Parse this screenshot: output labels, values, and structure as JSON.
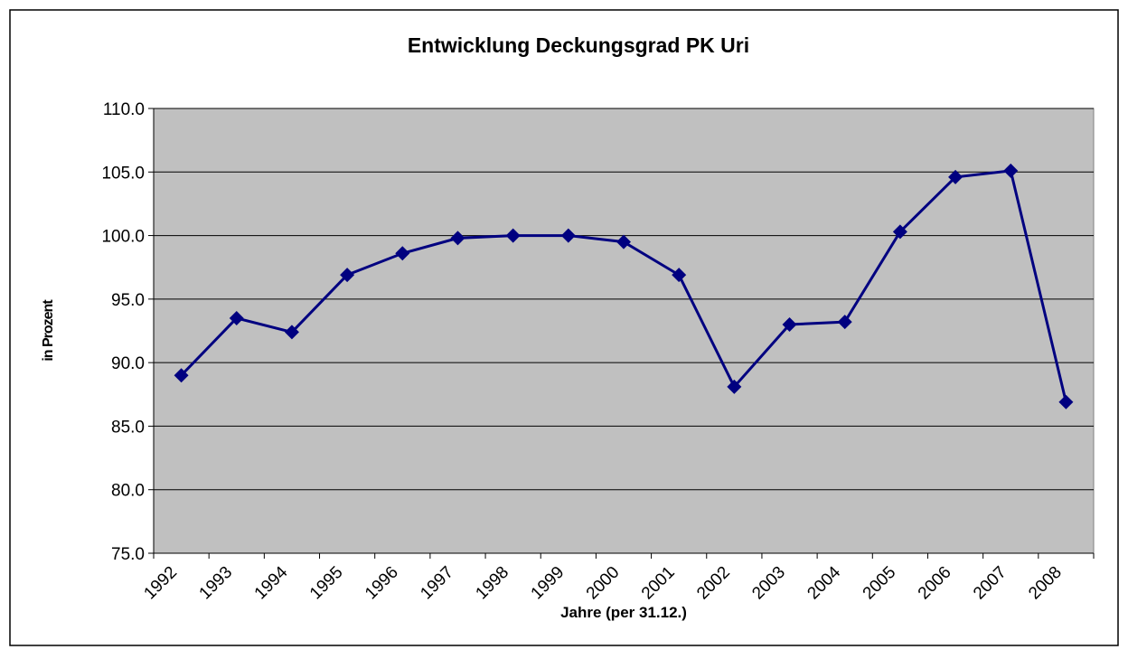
{
  "chart_data": {
    "type": "line",
    "title": "Entwicklung Deckungsgrad PK Uri",
    "x_label": "Jahre (per 31.12.)",
    "y_label": "in Prozent",
    "categories": [
      "1992",
      "1993",
      "1994",
      "1995",
      "1996",
      "1997",
      "1998",
      "1999",
      "2000",
      "2001",
      "2002",
      "2003",
      "2004",
      "2005",
      "2006",
      "2007",
      "2008"
    ],
    "series": [
      {
        "name": "Deckungsgrad",
        "color": "#000080",
        "values": [
          89.0,
          93.5,
          92.4,
          96.9,
          98.6,
          99.8,
          100.0,
          100.0,
          99.5,
          96.9,
          88.1,
          93.0,
          93.2,
          100.3,
          104.6,
          105.1,
          86.9
        ]
      }
    ],
    "ylim": [
      75,
      110
    ],
    "yticks": [
      {
        "value": 75,
        "label": "75.0"
      },
      {
        "value": 80,
        "label": "80.0"
      },
      {
        "value": 85,
        "label": "85.0"
      },
      {
        "value": 90,
        "label": "90.0"
      },
      {
        "value": 95,
        "label": "95.0"
      },
      {
        "value": 100,
        "label": "100.0"
      },
      {
        "value": 105,
        "label": "105.0"
      },
      {
        "value": 110,
        "label": "110.0"
      }
    ],
    "grid": true,
    "plot_background": "#c0c0c0"
  }
}
